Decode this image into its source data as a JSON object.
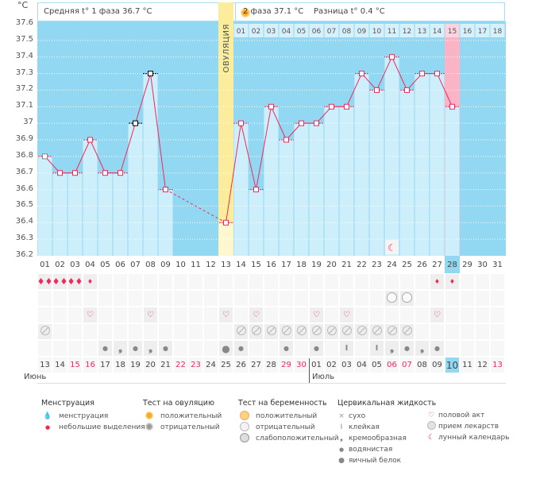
{
  "unit_label": "°C",
  "header": {
    "phase1": "Средняя t° 1 фаза 36.7 °C",
    "phase2": "2 фаза 37.1 °C",
    "diff": "Разница t° 0.4 °C",
    "ovulation_label": "ОВУЛЯЦИЯ"
  },
  "colors": {
    "sky": "#92d8f2",
    "bar": "#cdeefb",
    "ovulation": "#fbed9b",
    "line": "#f0295c",
    "pink": "#fbb3c6",
    "weekend": "#f0295c"
  },
  "chart_data": {
    "type": "line",
    "ylim": [
      36.2,
      37.6
    ],
    "yticks": [
      "37.6",
      "37.5",
      "37.4",
      "37.3",
      "37.2",
      "37.1",
      "37",
      "36.9",
      "36.8",
      "36.7",
      "36.6",
      "36.5",
      "36.4",
      "36.3",
      "36.2"
    ],
    "cycle_days": [
      "01",
      "02",
      "03",
      "04",
      "05",
      "06",
      "07",
      "08",
      "09",
      "10",
      "11",
      "12",
      "13",
      "14",
      "15",
      "16",
      "17",
      "18",
      "19",
      "20",
      "21",
      "22",
      "23",
      "24",
      "25",
      "26",
      "27",
      "28",
      "29",
      "30",
      "31"
    ],
    "temperatures": [
      36.8,
      36.7,
      36.7,
      36.9,
      36.7,
      36.7,
      37.0,
      37.3,
      36.6,
      null,
      null,
      null,
      36.4,
      37.0,
      36.6,
      37.1,
      36.9,
      37.0,
      37.0,
      37.1,
      37.1,
      37.3,
      37.2,
      37.4,
      37.2,
      37.3,
      37.3,
      37.1,
      null,
      null,
      null
    ],
    "ovulation_day": 13,
    "current_day": 28,
    "post_ovulation_days": [
      "01",
      "02",
      "03",
      "04",
      "05",
      "06",
      "07",
      "08",
      "09",
      "10",
      "11",
      "12",
      "13",
      "14",
      "15",
      "16",
      "17",
      "18"
    ],
    "moon_day": 24
  },
  "rows": {
    "menstruation": {
      "1": "heavy",
      "2": "heavy",
      "3": "heavy",
      "4": "light",
      "27": "light",
      "28": "light"
    },
    "pregnancy_test": {
      "24": "negative",
      "25": "negative"
    },
    "intercourse": [
      4,
      8,
      13,
      15,
      19,
      21,
      27
    ],
    "medication": [
      1,
      14,
      15,
      16,
      17,
      18,
      19,
      20,
      21,
      22,
      23,
      24,
      25
    ],
    "cervical_fluid": {
      "5": "watery",
      "6": "creamy",
      "7": "watery",
      "8": "creamy",
      "9": "watery",
      "13": "eggwhite",
      "14": "watery",
      "17": "watery",
      "19": "watery",
      "21": "sticky",
      "23": "sticky",
      "24": "creamy",
      "25": "watery",
      "26": "creamy",
      "27": "watery"
    }
  },
  "dates": [
    "13",
    "14",
    "15",
    "16",
    "17",
    "18",
    "19",
    "20",
    "21",
    "22",
    "23",
    "24",
    "25",
    "26",
    "27",
    "28",
    "29",
    "30",
    "01",
    "02",
    "03",
    "04",
    "05",
    "06",
    "07",
    "08",
    "09",
    "10",
    "11",
    "12",
    "13"
  ],
  "weekend_idx": [
    2,
    3,
    9,
    10,
    16,
    17,
    23,
    24,
    30
  ],
  "months": {
    "june": "Июнь",
    "july": "Июль"
  },
  "legend": {
    "menstruation": {
      "title": "Менструация",
      "items": [
        "менструация",
        "небольшие выделения"
      ]
    },
    "ovulation_test": {
      "title": "Тест на овуляцию",
      "items": [
        "положительный",
        "отрицательный"
      ]
    },
    "pregnancy_test": {
      "title": "Тест на беременность",
      "items": [
        "положительный",
        "отрицательный",
        "слабоположительный"
      ]
    },
    "cervical": {
      "title": "Цервикальная жидкость",
      "items": [
        "сухо",
        "клейкая",
        "кремообразная",
        "водянистая",
        "яичный белок"
      ]
    },
    "other": {
      "items": [
        "половой акт",
        "прием лекарств",
        "лунный календарь"
      ]
    }
  }
}
